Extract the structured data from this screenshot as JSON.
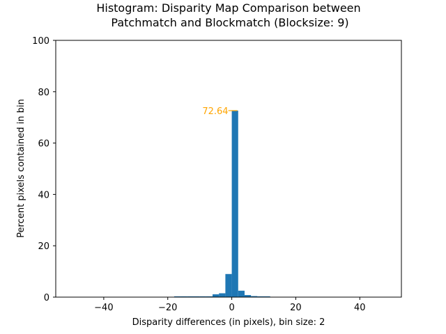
{
  "chart_data": {
    "type": "bar",
    "title_line1": "Histogram: Disparity Map Comparison between",
    "title_line2": "Patchmatch and Blockmatch (Blocksize: 9)",
    "xlabel": "Disparity differences (in pixels), bin size: 2",
    "ylabel": "Percent pixels contained in bin",
    "xlim": [
      -55,
      53
    ],
    "ylim": [
      0,
      100
    ],
    "x_ticks": [
      -40,
      -20,
      0,
      20,
      40
    ],
    "x_tick_labels": [
      "−40",
      "−20",
      "0",
      "20",
      "40"
    ],
    "y_ticks": [
      0,
      20,
      40,
      60,
      80,
      100
    ],
    "y_tick_labels": [
      "0",
      "20",
      "40",
      "60",
      "80",
      "100"
    ],
    "bin_width": 2,
    "bins": [
      {
        "left": -18,
        "value": 0.3
      },
      {
        "left": -16,
        "value": 0.3
      },
      {
        "left": -14,
        "value": 0.3
      },
      {
        "left": -12,
        "value": 0.3
      },
      {
        "left": -10,
        "value": 0.3
      },
      {
        "left": -8,
        "value": 0.3
      },
      {
        "left": -6,
        "value": 1.1
      },
      {
        "left": -4,
        "value": 1.5
      },
      {
        "left": -2,
        "value": 9.0
      },
      {
        "left": 0,
        "value": 72.64
      },
      {
        "left": 2,
        "value": 2.5
      },
      {
        "left": 4,
        "value": 0.8
      },
      {
        "left": 6,
        "value": 0.4
      },
      {
        "left": 8,
        "value": 0.3
      },
      {
        "left": 10,
        "value": 0.3
      }
    ],
    "bar_color": "#1f77b4",
    "annotation": {
      "text": "72.64",
      "x": 0,
      "y": 72.64,
      "color": "#ffa500"
    },
    "grid": false
  }
}
